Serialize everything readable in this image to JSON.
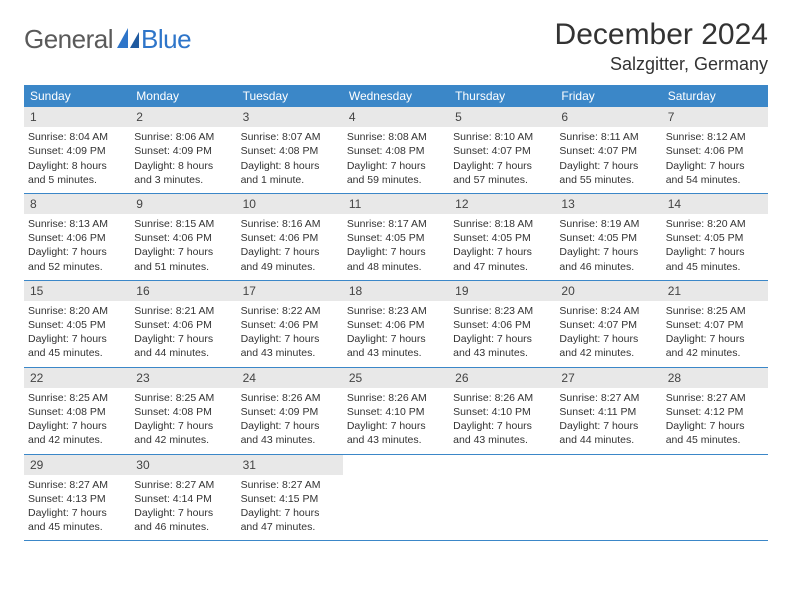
{
  "brand": {
    "part1": "General",
    "part2": "Blue"
  },
  "title": "December 2024",
  "location": "Salzgitter, Germany",
  "colors": {
    "header_bg": "#3b87c8",
    "header_text": "#ffffff",
    "daynum_bg": "#e8e8e8",
    "row_border": "#3b87c8",
    "body_text": "#333333",
    "logo_gray": "#5a5a5a",
    "logo_blue": "#2e75c9"
  },
  "day_names": [
    "Sunday",
    "Monday",
    "Tuesday",
    "Wednesday",
    "Thursday",
    "Friday",
    "Saturday"
  ],
  "weeks": [
    [
      {
        "n": "1",
        "sr": "Sunrise: 8:04 AM",
        "ss": "Sunset: 4:09 PM",
        "dl": "Daylight: 8 hours and 5 minutes."
      },
      {
        "n": "2",
        "sr": "Sunrise: 8:06 AM",
        "ss": "Sunset: 4:09 PM",
        "dl": "Daylight: 8 hours and 3 minutes."
      },
      {
        "n": "3",
        "sr": "Sunrise: 8:07 AM",
        "ss": "Sunset: 4:08 PM",
        "dl": "Daylight: 8 hours and 1 minute."
      },
      {
        "n": "4",
        "sr": "Sunrise: 8:08 AM",
        "ss": "Sunset: 4:08 PM",
        "dl": "Daylight: 7 hours and 59 minutes."
      },
      {
        "n": "5",
        "sr": "Sunrise: 8:10 AM",
        "ss": "Sunset: 4:07 PM",
        "dl": "Daylight: 7 hours and 57 minutes."
      },
      {
        "n": "6",
        "sr": "Sunrise: 8:11 AM",
        "ss": "Sunset: 4:07 PM",
        "dl": "Daylight: 7 hours and 55 minutes."
      },
      {
        "n": "7",
        "sr": "Sunrise: 8:12 AM",
        "ss": "Sunset: 4:06 PM",
        "dl": "Daylight: 7 hours and 54 minutes."
      }
    ],
    [
      {
        "n": "8",
        "sr": "Sunrise: 8:13 AM",
        "ss": "Sunset: 4:06 PM",
        "dl": "Daylight: 7 hours and 52 minutes."
      },
      {
        "n": "9",
        "sr": "Sunrise: 8:15 AM",
        "ss": "Sunset: 4:06 PM",
        "dl": "Daylight: 7 hours and 51 minutes."
      },
      {
        "n": "10",
        "sr": "Sunrise: 8:16 AM",
        "ss": "Sunset: 4:06 PM",
        "dl": "Daylight: 7 hours and 49 minutes."
      },
      {
        "n": "11",
        "sr": "Sunrise: 8:17 AM",
        "ss": "Sunset: 4:05 PM",
        "dl": "Daylight: 7 hours and 48 minutes."
      },
      {
        "n": "12",
        "sr": "Sunrise: 8:18 AM",
        "ss": "Sunset: 4:05 PM",
        "dl": "Daylight: 7 hours and 47 minutes."
      },
      {
        "n": "13",
        "sr": "Sunrise: 8:19 AM",
        "ss": "Sunset: 4:05 PM",
        "dl": "Daylight: 7 hours and 46 minutes."
      },
      {
        "n": "14",
        "sr": "Sunrise: 8:20 AM",
        "ss": "Sunset: 4:05 PM",
        "dl": "Daylight: 7 hours and 45 minutes."
      }
    ],
    [
      {
        "n": "15",
        "sr": "Sunrise: 8:20 AM",
        "ss": "Sunset: 4:05 PM",
        "dl": "Daylight: 7 hours and 45 minutes."
      },
      {
        "n": "16",
        "sr": "Sunrise: 8:21 AM",
        "ss": "Sunset: 4:06 PM",
        "dl": "Daylight: 7 hours and 44 minutes."
      },
      {
        "n": "17",
        "sr": "Sunrise: 8:22 AM",
        "ss": "Sunset: 4:06 PM",
        "dl": "Daylight: 7 hours and 43 minutes."
      },
      {
        "n": "18",
        "sr": "Sunrise: 8:23 AM",
        "ss": "Sunset: 4:06 PM",
        "dl": "Daylight: 7 hours and 43 minutes."
      },
      {
        "n": "19",
        "sr": "Sunrise: 8:23 AM",
        "ss": "Sunset: 4:06 PM",
        "dl": "Daylight: 7 hours and 43 minutes."
      },
      {
        "n": "20",
        "sr": "Sunrise: 8:24 AM",
        "ss": "Sunset: 4:07 PM",
        "dl": "Daylight: 7 hours and 42 minutes."
      },
      {
        "n": "21",
        "sr": "Sunrise: 8:25 AM",
        "ss": "Sunset: 4:07 PM",
        "dl": "Daylight: 7 hours and 42 minutes."
      }
    ],
    [
      {
        "n": "22",
        "sr": "Sunrise: 8:25 AM",
        "ss": "Sunset: 4:08 PM",
        "dl": "Daylight: 7 hours and 42 minutes."
      },
      {
        "n": "23",
        "sr": "Sunrise: 8:25 AM",
        "ss": "Sunset: 4:08 PM",
        "dl": "Daylight: 7 hours and 42 minutes."
      },
      {
        "n": "24",
        "sr": "Sunrise: 8:26 AM",
        "ss": "Sunset: 4:09 PM",
        "dl": "Daylight: 7 hours and 43 minutes."
      },
      {
        "n": "25",
        "sr": "Sunrise: 8:26 AM",
        "ss": "Sunset: 4:10 PM",
        "dl": "Daylight: 7 hours and 43 minutes."
      },
      {
        "n": "26",
        "sr": "Sunrise: 8:26 AM",
        "ss": "Sunset: 4:10 PM",
        "dl": "Daylight: 7 hours and 43 minutes."
      },
      {
        "n": "27",
        "sr": "Sunrise: 8:27 AM",
        "ss": "Sunset: 4:11 PM",
        "dl": "Daylight: 7 hours and 44 minutes."
      },
      {
        "n": "28",
        "sr": "Sunrise: 8:27 AM",
        "ss": "Sunset: 4:12 PM",
        "dl": "Daylight: 7 hours and 45 minutes."
      }
    ],
    [
      {
        "n": "29",
        "sr": "Sunrise: 8:27 AM",
        "ss": "Sunset: 4:13 PM",
        "dl": "Daylight: 7 hours and 45 minutes."
      },
      {
        "n": "30",
        "sr": "Sunrise: 8:27 AM",
        "ss": "Sunset: 4:14 PM",
        "dl": "Daylight: 7 hours and 46 minutes."
      },
      {
        "n": "31",
        "sr": "Sunrise: 8:27 AM",
        "ss": "Sunset: 4:15 PM",
        "dl": "Daylight: 7 hours and 47 minutes."
      },
      null,
      null,
      null,
      null
    ]
  ]
}
